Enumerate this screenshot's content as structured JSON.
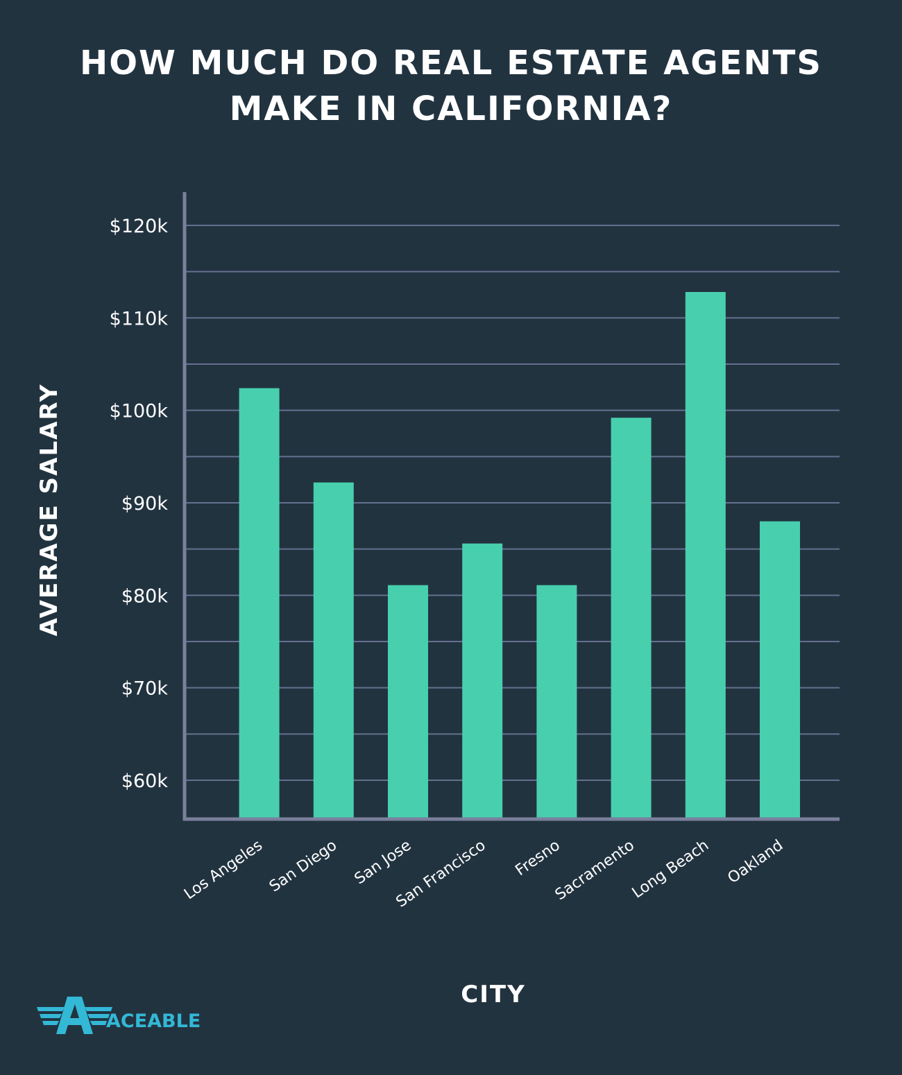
{
  "title": {
    "line1": "HOW MUCH DO REAL ESTATE AGENTS",
    "line2": "MAKE IN CALIFORNIA?"
  },
  "brand": {
    "name": "ACEABLE",
    "logo_icon": "aceable-wings-logo-icon",
    "color": "#33b8d6"
  },
  "colors": {
    "background": "#223340",
    "bar": "#48cfae",
    "grid": "#65708e",
    "axis": "#7a809c",
    "text": "#ffffff"
  },
  "chart_data": {
    "type": "bar",
    "title": "HOW MUCH DO REAL ESTATE AGENTS MAKE IN CALIFORNIA?",
    "xlabel": "CITY",
    "ylabel": "AVERAGE SALARY",
    "categories": [
      "Los Angeles",
      "San Diego",
      "San Jose",
      "San Francisco",
      "Fresno",
      "Sacramento",
      "Long Beach",
      "Oakland"
    ],
    "values": [
      102400,
      92200,
      81100,
      85600,
      81100,
      99200,
      112800,
      88000
    ],
    "ylim": [
      55800,
      123600
    ],
    "yticks": [
      60000,
      70000,
      80000,
      90000,
      100000,
      110000,
      120000
    ],
    "ytick_labels": [
      "$60k",
      "$70k",
      "$80k",
      "$90k",
      "$100k",
      "$110k",
      "$120k"
    ],
    "minor_gridlines": [
      65000,
      75000,
      85000,
      95000,
      105000,
      115000
    ],
    "grid": true,
    "legend": "none"
  }
}
